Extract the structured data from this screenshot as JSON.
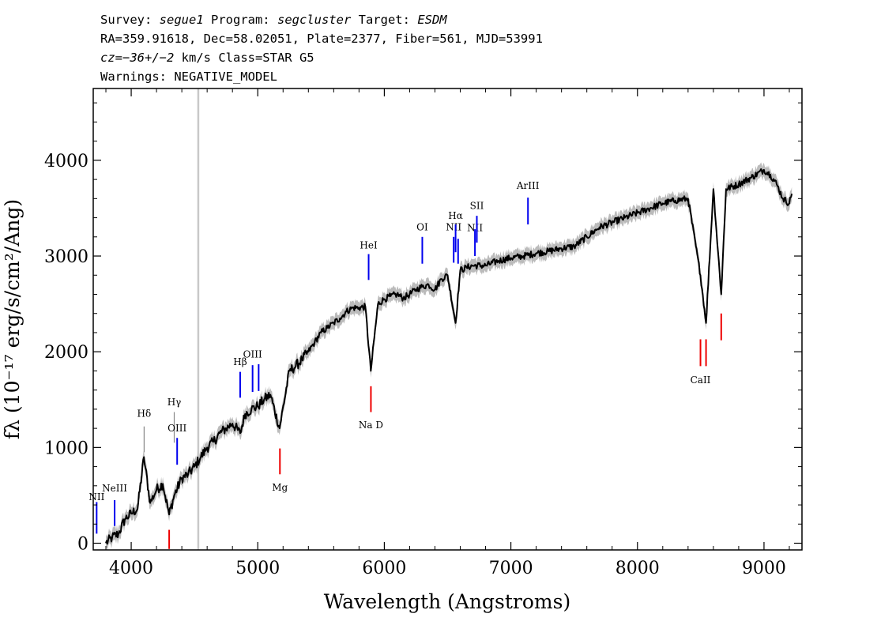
{
  "header": {
    "line1": {
      "survey_label": "Survey: ",
      "survey": "segue1",
      "program_label": " Program: ",
      "program": "segcluster",
      "target_label": " Target: ",
      "target": "ESDM"
    },
    "line2": "RA=359.91618, Dec=58.02051, Plate=2377, Fiber=561, MJD=53991",
    "line3": {
      "cz_label": "cz=",
      "cz_value": "−36+/−2",
      "cz_units": " km/s Class=STAR G5"
    },
    "line4": "Warnings: NEGATIVE_MODEL"
  },
  "colors": {
    "spectrum": "#000000",
    "error_band": "#bbbbbb",
    "emission_line": "#0000ee",
    "absorption_line": "#ee0000",
    "marker_line": "#888888",
    "gap_line": "#c8c8c8"
  },
  "chart_data": {
    "type": "line",
    "title": "",
    "xlabel": "Wavelength (Angstroms)",
    "ylabel": "fλ (10⁻¹⁷ erg/s/cm²/Ang)",
    "xlim": [
      3700,
      9300
    ],
    "ylim": [
      -70,
      4750
    ],
    "x_ticks": [
      4000,
      5000,
      6000,
      7000,
      8000,
      9000
    ],
    "x_tick_labels": [
      "4000",
      "5000",
      "6000",
      "7000",
      "8000",
      "9000"
    ],
    "y_ticks": [
      0,
      1000,
      2000,
      3000,
      4000
    ],
    "y_tick_labels": [
      "0",
      "1000",
      "2000",
      "3000",
      "4000"
    ],
    "gap_line_x": 4530,
    "series": [
      {
        "name": "flux",
        "x": [
          3800,
          3850,
          3900,
          3950,
          4000,
          4050,
          4101,
          4150,
          4200,
          4250,
          4300,
          4340,
          4400,
          4450,
          4500,
          4550,
          4600,
          4650,
          4700,
          4750,
          4800,
          4861,
          4900,
          4950,
          5000,
          5050,
          5100,
          5172,
          5250,
          5300,
          5350,
          5400,
          5450,
          5500,
          5550,
          5600,
          5650,
          5700,
          5750,
          5800,
          5850,
          5893,
          5950,
          6000,
          6050,
          6100,
          6150,
          6200,
          6250,
          6300,
          6350,
          6400,
          6450,
          6500,
          6563,
          6600,
          6650,
          6700,
          6800,
          6900,
          7000,
          7100,
          7200,
          7300,
          7400,
          7500,
          7600,
          7700,
          7800,
          7900,
          8000,
          8100,
          8200,
          8300,
          8400,
          8498,
          8542,
          8600,
          8662,
          8700,
          8800,
          8900,
          9000,
          9050,
          9100,
          9150,
          9200,
          9220
        ],
        "y": [
          0,
          60,
          100,
          250,
          310,
          360,
          900,
          420,
          560,
          620,
          300,
          500,
          680,
          720,
          800,
          900,
          1000,
          1060,
          1150,
          1200,
          1250,
          1150,
          1350,
          1400,
          1430,
          1500,
          1550,
          1200,
          1800,
          1850,
          1920,
          2000,
          2100,
          2200,
          2250,
          2300,
          2350,
          2420,
          2460,
          2460,
          2470,
          1800,
          2500,
          2550,
          2580,
          2600,
          2560,
          2600,
          2650,
          2680,
          2700,
          2650,
          2760,
          2800,
          2300,
          2850,
          2880,
          2900,
          2900,
          2950,
          2980,
          3000,
          3030,
          3050,
          3080,
          3100,
          3200,
          3300,
          3350,
          3400,
          3450,
          3500,
          3550,
          3580,
          3600,
          2800,
          2300,
          3700,
          2600,
          3700,
          3750,
          3820,
          3900,
          3850,
          3750,
          3600,
          3550,
          3650
        ]
      }
    ],
    "error_band_halfwidth": 70,
    "line_markers": [
      {
        "label": "NII",
        "x": 3727,
        "y0": 100,
        "y1": 430,
        "color": "emission",
        "label_y": 450
      },
      {
        "label": "NeIII",
        "x": 3869,
        "y0": 180,
        "y1": 450,
        "color": "emission",
        "label_y": 540
      },
      {
        "label": "Hδ",
        "x": 4102,
        "y0": 950,
        "y1": 1220,
        "color": "emission_thin",
        "label_y": 1320
      },
      {
        "label": "Hγ",
        "x": 4340,
        "y0": 1050,
        "y1": 1370,
        "color": "emission_thin",
        "label_y": 1440
      },
      {
        "label": "OIII",
        "x": 4363,
        "y0": 820,
        "y1": 1100,
        "color": "emission",
        "label_y": 1170
      },
      {
        "label": "Hβ",
        "x": 4861,
        "y0": 1520,
        "y1": 1790,
        "color": "emission",
        "label_y": 1860
      },
      {
        "label": "OIII",
        "x": 4959,
        "y0": 1580,
        "y1": 1860,
        "color": "emission",
        "label_y": 1940
      },
      {
        "label": "OIII",
        "x": 5007,
        "y0": 1590,
        "y1": 1870,
        "color": "emission",
        "label_y": null
      },
      {
        "label": "HeI",
        "x": 5876,
        "y0": 2750,
        "y1": 3020,
        "color": "emission",
        "label_y": 3080
      },
      {
        "label": "OI",
        "x": 6300,
        "y0": 2920,
        "y1": 3200,
        "color": "emission",
        "label_y": 3270
      },
      {
        "label": "NII",
        "x": 6548,
        "y0": 2930,
        "y1": 3200,
        "color": "emission",
        "label_y": 3270
      },
      {
        "label": "Hα",
        "x": 6563,
        "y0": 3040,
        "y1": 3330,
        "color": "emission",
        "label_y": 3390
      },
      {
        "label": "NII",
        "x": 6583,
        "y0": 2920,
        "y1": 3180,
        "color": "emission",
        "label_y": null
      },
      {
        "label": "NII",
        "x": 6716,
        "y0": 3000,
        "y1": 3280,
        "color": "emission",
        "label_y": 3260
      },
      {
        "label": "SII",
        "x": 6731,
        "y0": 3140,
        "y1": 3420,
        "color": "emission",
        "label_y": 3490
      },
      {
        "label": "ArIII",
        "x": 7135,
        "y0": 3330,
        "y1": 3610,
        "color": "emission",
        "label_y": 3700
      },
      {
        "label": "",
        "x": 4300,
        "y0": -60,
        "y1": 140,
        "color": "absorption",
        "label_y": null
      },
      {
        "label": "Mg",
        "x": 5175,
        "y0": 720,
        "y1": 990,
        "color": "absorption",
        "label_y": 550
      },
      {
        "label": "Na D",
        "x": 5894,
        "y0": 1370,
        "y1": 1640,
        "color": "absorption",
        "label_y": 1200
      },
      {
        "label": "CaII",
        "x": 8498,
        "y0": 1850,
        "y1": 2130,
        "color": "absorption",
        "label_y": 1670
      },
      {
        "label": "",
        "x": 8542,
        "y0": 1850,
        "y1": 2130,
        "color": "absorption",
        "label_y": null
      },
      {
        "label": "",
        "x": 8662,
        "y0": 2120,
        "y1": 2400,
        "color": "absorption",
        "label_y": null
      }
    ]
  }
}
